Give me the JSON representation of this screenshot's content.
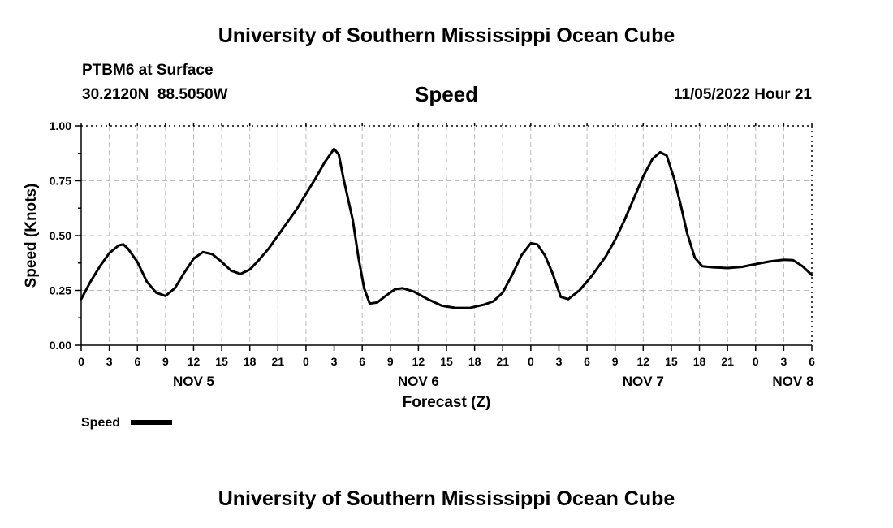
{
  "page": {
    "header_title": "University of Southern Mississippi Ocean Cube",
    "station": "PTBM6 at Surface",
    "coordinates": "30.2120N  88.5050W",
    "variable": "Speed",
    "timestamp": "11/05/2022 Hour 21",
    "footer_title": "University of Southern Mississippi Ocean Cube"
  },
  "chart_data": {
    "type": "line",
    "ylabel": "Speed (Knots)",
    "xlabel": "Forecast (Z)",
    "ylim": [
      0,
      1.0
    ],
    "xlim": [
      0,
      78
    ],
    "grid": true,
    "legend_position": "bottom-left",
    "line_color": "#000000",
    "grid_color": "#bbbbbb",
    "y_ticks": [
      {
        "value": 0.0,
        "label": "0.00"
      },
      {
        "value": 0.25,
        "label": "0.25"
      },
      {
        "value": 0.5,
        "label": "0.50"
      },
      {
        "value": 0.75,
        "label": "0.75"
      },
      {
        "value": 1.0,
        "label": "1.00"
      }
    ],
    "x_ticks": [
      {
        "value": 0,
        "label": "0"
      },
      {
        "value": 3,
        "label": "3"
      },
      {
        "value": 6,
        "label": "6"
      },
      {
        "value": 9,
        "label": "9"
      },
      {
        "value": 12,
        "label": "12"
      },
      {
        "value": 15,
        "label": "15"
      },
      {
        "value": 18,
        "label": "18"
      },
      {
        "value": 21,
        "label": "21"
      },
      {
        "value": 24,
        "label": "0"
      },
      {
        "value": 27,
        "label": "3"
      },
      {
        "value": 30,
        "label": "6"
      },
      {
        "value": 33,
        "label": "9"
      },
      {
        "value": 36,
        "label": "12"
      },
      {
        "value": 39,
        "label": "15"
      },
      {
        "value": 42,
        "label": "18"
      },
      {
        "value": 45,
        "label": "21"
      },
      {
        "value": 48,
        "label": "0"
      },
      {
        "value": 51,
        "label": "3"
      },
      {
        "value": 54,
        "label": "6"
      },
      {
        "value": 57,
        "label": "9"
      },
      {
        "value": 60,
        "label": "12"
      },
      {
        "value": 63,
        "label": "15"
      },
      {
        "value": 66,
        "label": "18"
      },
      {
        "value": 69,
        "label": "21"
      },
      {
        "value": 72,
        "label": "0"
      },
      {
        "value": 75,
        "label": "3"
      },
      {
        "value": 78,
        "label": "6"
      }
    ],
    "date_labels": [
      {
        "position": 12,
        "label": "NOV 5"
      },
      {
        "position": 36,
        "label": "NOV 6"
      },
      {
        "position": 60,
        "label": "NOV 7"
      },
      {
        "position": 76,
        "label": "NOV 8"
      }
    ],
    "series": [
      {
        "name": "Speed",
        "points": [
          [
            0,
            0.21
          ],
          [
            1,
            0.29
          ],
          [
            2,
            0.36
          ],
          [
            3,
            0.42
          ],
          [
            4,
            0.455
          ],
          [
            4.5,
            0.46
          ],
          [
            5,
            0.44
          ],
          [
            6,
            0.38
          ],
          [
            7,
            0.29
          ],
          [
            8,
            0.24
          ],
          [
            9,
            0.225
          ],
          [
            10,
            0.26
          ],
          [
            11,
            0.33
          ],
          [
            12,
            0.395
          ],
          [
            13,
            0.425
          ],
          [
            14,
            0.415
          ],
          [
            15,
            0.38
          ],
          [
            16,
            0.34
          ],
          [
            17,
            0.325
          ],
          [
            18,
            0.345
          ],
          [
            19,
            0.39
          ],
          [
            20,
            0.44
          ],
          [
            21,
            0.5
          ],
          [
            22,
            0.56
          ],
          [
            23,
            0.62
          ],
          [
            24,
            0.69
          ],
          [
            25,
            0.76
          ],
          [
            26,
            0.835
          ],
          [
            26.5,
            0.865
          ],
          [
            27,
            0.895
          ],
          [
            27.5,
            0.87
          ],
          [
            28,
            0.76
          ],
          [
            29,
            0.57
          ],
          [
            29.6,
            0.4
          ],
          [
            30.2,
            0.26
          ],
          [
            30.8,
            0.19
          ],
          [
            31.6,
            0.195
          ],
          [
            32.5,
            0.225
          ],
          [
            33.5,
            0.255
          ],
          [
            34.3,
            0.26
          ],
          [
            35.5,
            0.245
          ],
          [
            37,
            0.21
          ],
          [
            38.5,
            0.18
          ],
          [
            40,
            0.17
          ],
          [
            41.5,
            0.17
          ],
          [
            43,
            0.185
          ],
          [
            44,
            0.2
          ],
          [
            45,
            0.24
          ],
          [
            46,
            0.32
          ],
          [
            47,
            0.41
          ],
          [
            48,
            0.465
          ],
          [
            48.7,
            0.46
          ],
          [
            49.5,
            0.41
          ],
          [
            50.3,
            0.33
          ],
          [
            51.2,
            0.22
          ],
          [
            52,
            0.21
          ],
          [
            53.2,
            0.25
          ],
          [
            54.5,
            0.315
          ],
          [
            56,
            0.405
          ],
          [
            57,
            0.48
          ],
          [
            58,
            0.57
          ],
          [
            59,
            0.67
          ],
          [
            60,
            0.77
          ],
          [
            61,
            0.85
          ],
          [
            61.8,
            0.88
          ],
          [
            62.5,
            0.865
          ],
          [
            63.3,
            0.76
          ],
          [
            64,
            0.64
          ],
          [
            64.7,
            0.51
          ],
          [
            65.5,
            0.4
          ],
          [
            66.3,
            0.36
          ],
          [
            67.5,
            0.355
          ],
          [
            69,
            0.352
          ],
          [
            70.5,
            0.357
          ],
          [
            72,
            0.37
          ],
          [
            73.5,
            0.382
          ],
          [
            75,
            0.39
          ],
          [
            76,
            0.388
          ],
          [
            77,
            0.36
          ],
          [
            78,
            0.32
          ]
        ]
      }
    ]
  }
}
